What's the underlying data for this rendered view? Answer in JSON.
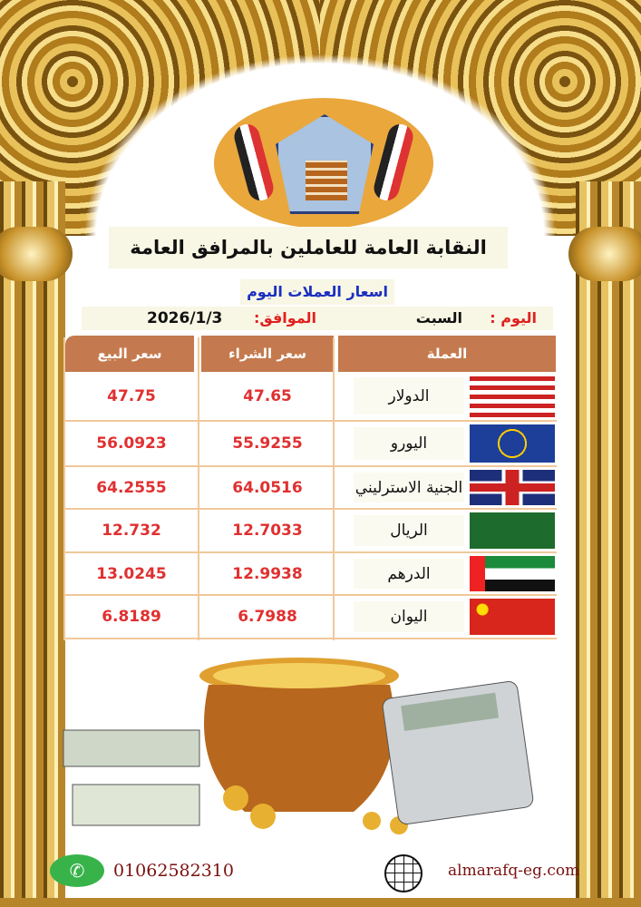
{
  "header": {
    "organization": "النقابة العامة للعاملين بالمرافق العامة",
    "subtitle": "اسعار العملات اليوم",
    "day_label": "اليوم :",
    "day_value": "السبت",
    "date_label": "الموافق:",
    "date_value": "2026/1/3"
  },
  "table": {
    "columns": [
      "العملة",
      "سعر الشراء",
      "سعر البيع"
    ],
    "rows": [
      {
        "currency": "الدولار",
        "flag": "us-flag",
        "buy": "47.65",
        "sell": "47.75"
      },
      {
        "currency": "اليورو",
        "flag": "eu-flag",
        "buy": "55.9255",
        "sell": "56.0923"
      },
      {
        "currency": "الجنية الاسترليني",
        "flag": "uk-flag",
        "buy": "64.0516",
        "sell": "64.2555"
      },
      {
        "currency": "الريال",
        "flag": "saudi-flag",
        "buy": "12.7033",
        "sell": "12.732"
      },
      {
        "currency": "الدرهم",
        "flag": "uae-flag",
        "buy": "12.9938",
        "sell": "13.0245"
      },
      {
        "currency": "اليوان",
        "flag": "china-flag",
        "buy": "6.7988",
        "sell": "6.8189"
      }
    ]
  },
  "footer": {
    "phone": "01062582310",
    "website": "almarafq-eg.com"
  },
  "colors": {
    "header_bg": "#c47a4e",
    "price": "#e03030",
    "subtitle": "#1a2fc0",
    "gold": "#c8962e"
  }
}
